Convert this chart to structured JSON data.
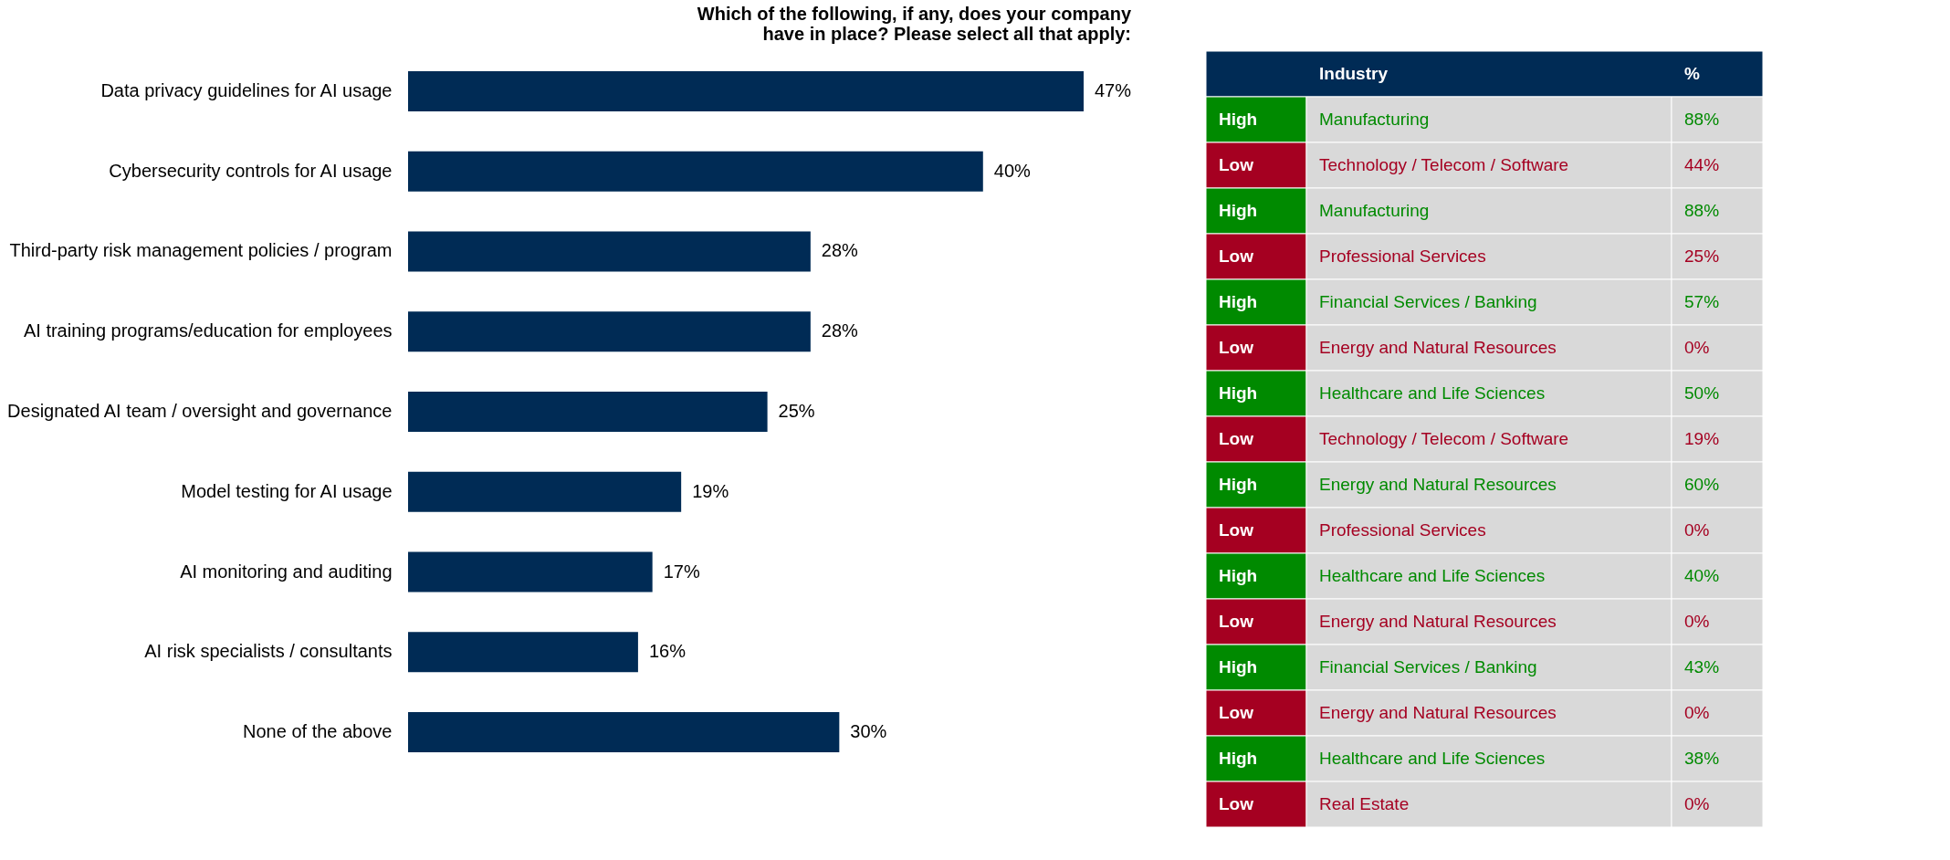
{
  "chart_data": [
    {
      "type": "bar",
      "orientation": "horizontal",
      "title": "Which of the following, if any, does your company have in place? Please select all that apply:",
      "categories": [
        "Data privacy guidelines for AI usage",
        "Cybersecurity controls for AI usage",
        "Third-party risk management policies / program",
        "AI training programs/education for employees",
        "Designated AI team / oversight and governance",
        "Model testing for AI usage",
        "AI monitoring and auditing",
        "AI risk specialists / consultants",
        "None of the above"
      ],
      "values": [
        47,
        40,
        28,
        28,
        25,
        19,
        17,
        16,
        30
      ],
      "value_labels": [
        "47%",
        "40%",
        "28%",
        "28%",
        "25%",
        "19%",
        "17%",
        "16%",
        "30%"
      ],
      "color": "#002b55"
    },
    {
      "type": "other",
      "annotations": [
        "Industry",
        "%",
        "High",
        "Manufacturing",
        "88%",
        "Low",
        "Technology / Telecom / Software",
        "44%",
        "High",
        "Manufacturing",
        "88%",
        "Low",
        "Professional Services",
        "25%",
        "High",
        "Financial Services / Banking",
        "57%",
        "Low",
        "Energy and Natural Resources",
        "0%",
        "High",
        "Healthcare and Life Sciences",
        "50%",
        "Low",
        "Technology / Telecom / Software",
        "19%",
        "High",
        "Energy and Natural Resources",
        "60%",
        "Low",
        "Professional Services",
        "0%",
        "High",
        "Healthcare and Life Sciences",
        "40%",
        "Low",
        "Energy and Natural Resources",
        "0%",
        "High",
        "Financial Services / Banking",
        "43%",
        "Low",
        "Energy and Natural Resources",
        "0%",
        "High",
        "Healthcare and Life Sciences",
        "38%",
        "Low",
        "Real Estate",
        "0%"
      ]
    }
  ]
}
